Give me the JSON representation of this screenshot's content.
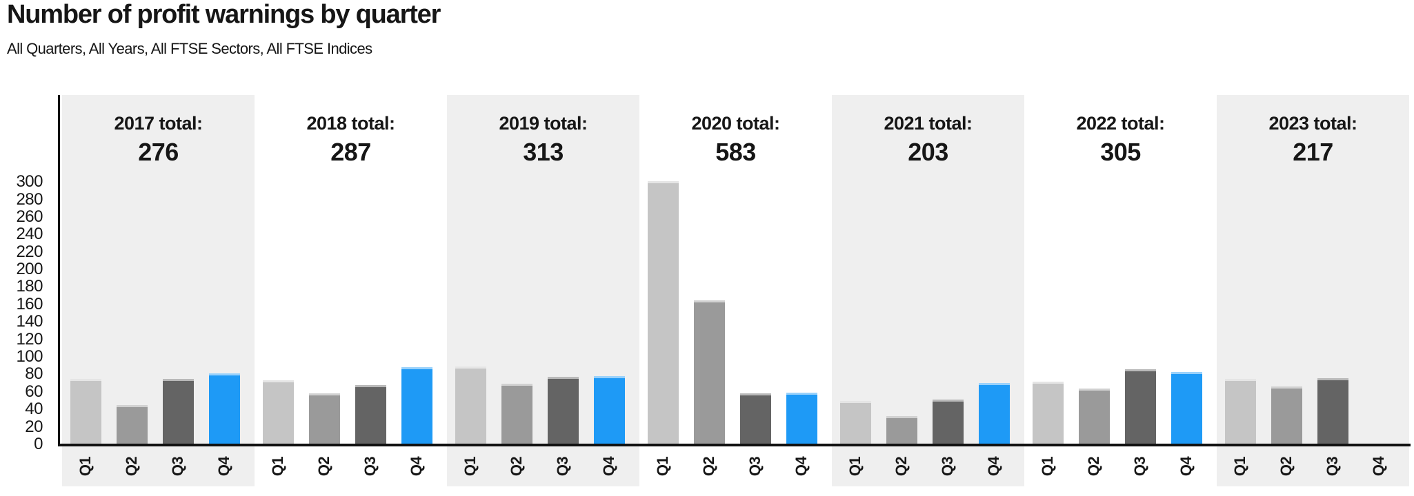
{
  "header": {
    "title": "Number of profit warnings by quarter",
    "subtitle": "All Quarters, All Years, All FTSE Sectors, All FTSE Indices"
  },
  "chart_data": {
    "type": "bar",
    "title": "Number of profit warnings by quarter",
    "xlabel": "",
    "ylabel": "",
    "ylim": [
      0,
      300
    ],
    "yticks": [
      0,
      20,
      40,
      60,
      80,
      100,
      120,
      140,
      160,
      180,
      200,
      220,
      240,
      260,
      280,
      300
    ],
    "grid": "off",
    "legend": "none",
    "quarters": [
      "Q1",
      "Q2",
      "Q3",
      "Q4"
    ],
    "quarter_colors": {
      "Q1": "#c5c5c5",
      "Q2": "#9a9a9a",
      "Q3": "#646464",
      "Q4": "#1e9af6"
    },
    "band_colors": {
      "shaded": "#efefef",
      "plain": "#ffffff"
    },
    "axis_color": "#111111",
    "text_color": "#161616",
    "years": [
      {
        "year": "2017",
        "total_label": "2017 total:",
        "total": "276",
        "values": [
          75,
          45,
          75,
          81
        ]
      },
      {
        "year": "2018",
        "total_label": "2018 total:",
        "total": "287",
        "values": [
          73,
          58,
          68,
          88
        ]
      },
      {
        "year": "2019",
        "total_label": "2019 total:",
        "total": "313",
        "values": [
          89,
          69,
          77,
          78
        ]
      },
      {
        "year": "2020",
        "total_label": "2020 total:",
        "total": "583",
        "values": [
          301,
          165,
          58,
          59
        ]
      },
      {
        "year": "2021",
        "total_label": "2021 total:",
        "total": "203",
        "values": [
          50,
          32,
          51,
          70
        ]
      },
      {
        "year": "2022",
        "total_label": "2022 total:",
        "total": "305",
        "values": [
          72,
          64,
          86,
          83
        ]
      },
      {
        "year": "2023",
        "total_label": "2023 total:",
        "total": "217",
        "values": [
          75,
          66,
          76,
          null
        ]
      }
    ]
  }
}
